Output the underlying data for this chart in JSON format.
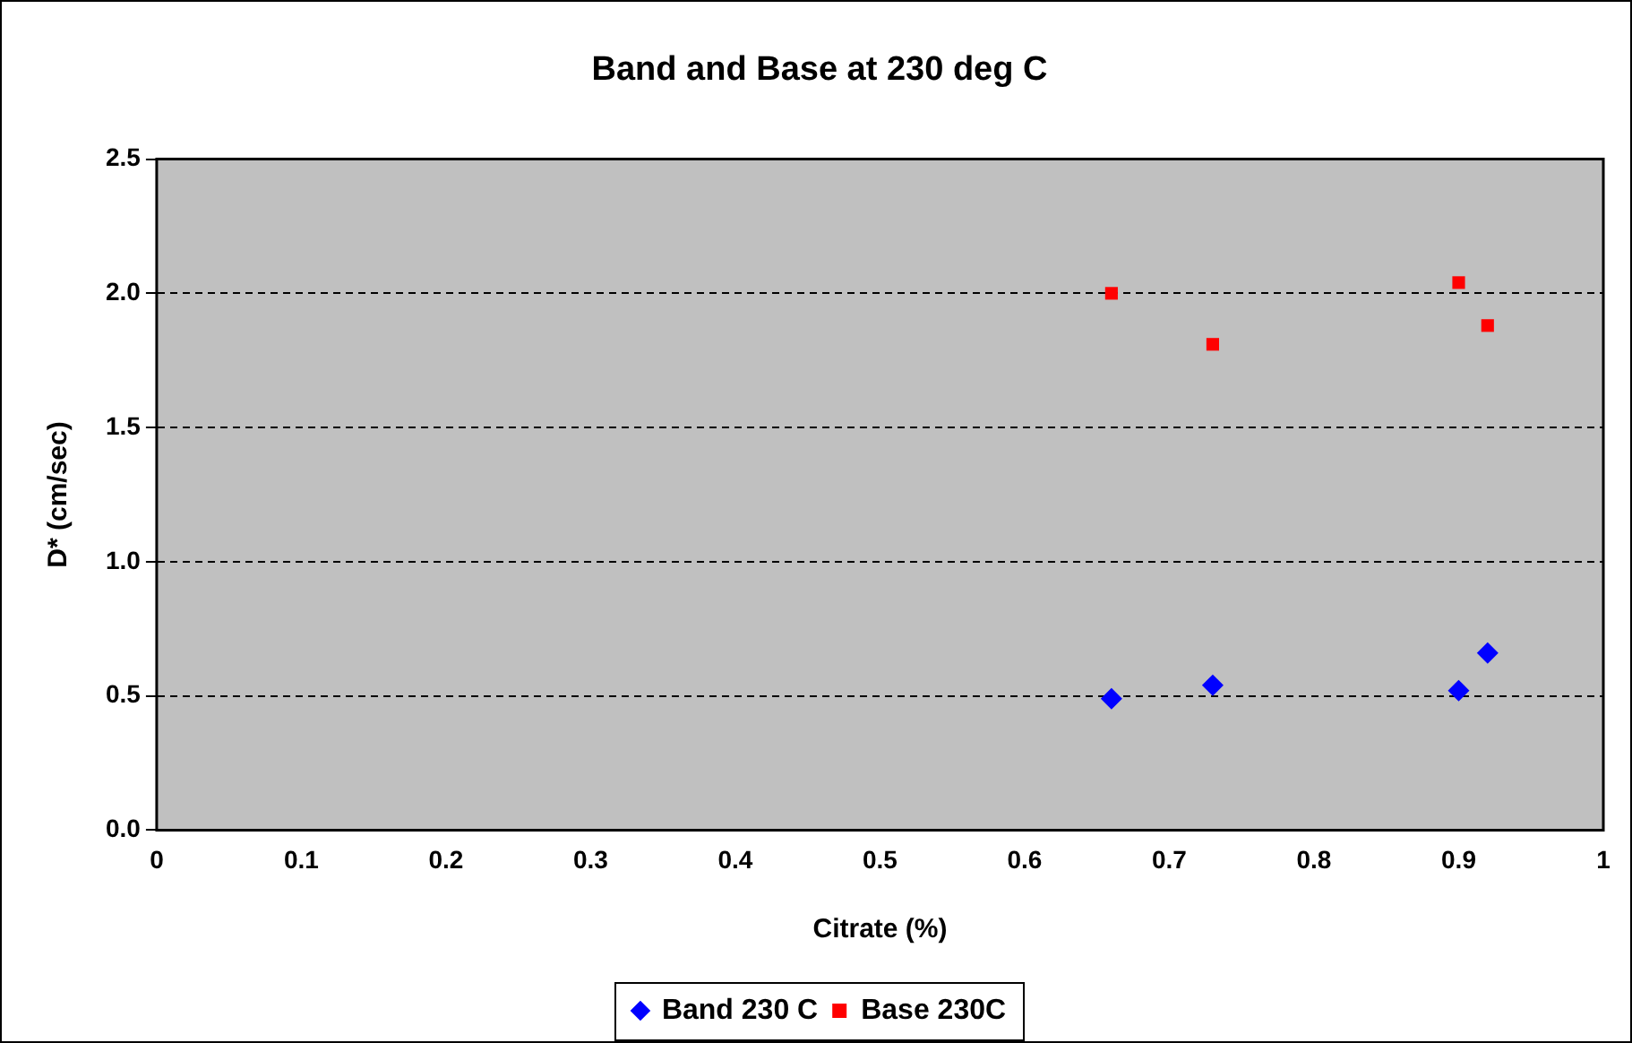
{
  "chart_data": {
    "type": "scatter",
    "title": "Band and Base at 230 deg C",
    "xlabel": "Citrate (%)",
    "ylabel": "D* (cm/sec)",
    "series": [
      {
        "name": "Band 230 C",
        "color": "#0000ff",
        "marker": "diamond",
        "x": [
          0.66,
          0.73,
          0.9,
          0.92
        ],
        "values": [
          0.49,
          0.54,
          0.52,
          0.66
        ]
      },
      {
        "name": "Base 230C",
        "color": "#ff0000",
        "marker": "square",
        "x": [
          0.66,
          0.73,
          0.9,
          0.92
        ],
        "values": [
          2.0,
          1.81,
          2.04,
          1.88
        ]
      }
    ],
    "xlim": [
      0,
      1
    ],
    "xticks": [
      {
        "value": 0,
        "label": "0"
      },
      {
        "value": 0.1,
        "label": "0.1"
      },
      {
        "value": 0.2,
        "label": "0.2"
      },
      {
        "value": 0.3,
        "label": "0.3"
      },
      {
        "value": 0.4,
        "label": "0.4"
      },
      {
        "value": 0.5,
        "label": "0.5"
      },
      {
        "value": 0.6,
        "label": "0.6"
      },
      {
        "value": 0.7,
        "label": "0.7"
      },
      {
        "value": 0.8,
        "label": "0.8"
      },
      {
        "value": 0.9,
        "label": "0.9"
      },
      {
        "value": 1,
        "label": "1"
      }
    ],
    "ylim": [
      0,
      2.5
    ],
    "yticks": [
      {
        "value": 0,
        "label": "0.0"
      },
      {
        "value": 0.5,
        "label": "0.5"
      },
      {
        "value": 1,
        "label": "1.0"
      },
      {
        "value": 1.5,
        "label": "1.5"
      },
      {
        "value": 2,
        "label": "2.0"
      },
      {
        "value": 2.5,
        "label": "2.5"
      }
    ],
    "grid": "y",
    "legend": "bottom"
  }
}
